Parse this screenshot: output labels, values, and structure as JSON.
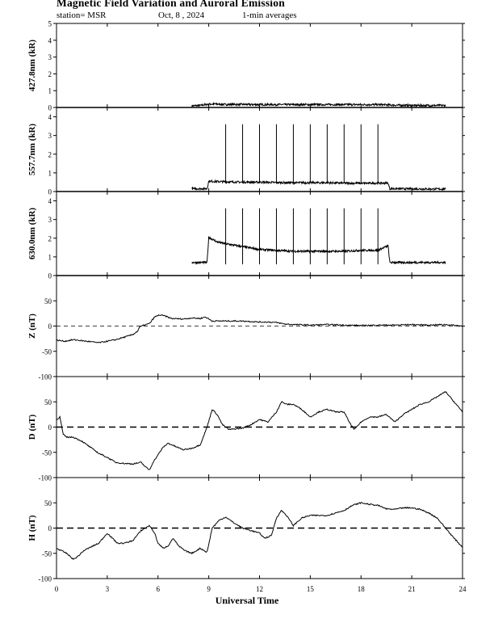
{
  "header": {
    "title": "Magnetic Field Variation and Auroral Emission",
    "station": "station= MSR",
    "date": "Oct, 8  , 2024",
    "averaging": "1-min averages"
  },
  "x_axis": {
    "label": "Universal Time",
    "range": [
      0,
      24
    ],
    "ticks": [
      0,
      3,
      6,
      9,
      12,
      15,
      18,
      21,
      24
    ]
  },
  "chart_data": [
    {
      "type": "line",
      "ylabel": "427.8nm (kR)",
      "ylim": [
        0,
        5
      ],
      "yticks": [
        0,
        1,
        2,
        3,
        4,
        5
      ],
      "series": [
        {
          "x": [
            8.0,
            8.5,
            9.0,
            9.5,
            10,
            11,
            12,
            13,
            14,
            15,
            16,
            17,
            18,
            19,
            20,
            21,
            22,
            23.0
          ],
          "values": [
            0.1,
            0.12,
            0.2,
            0.2,
            0.18,
            0.18,
            0.17,
            0.17,
            0.17,
            0.17,
            0.17,
            0.17,
            0.17,
            0.17,
            0.14,
            0.12,
            0.12,
            0.12
          ]
        }
      ]
    },
    {
      "type": "line",
      "ylabel": "557.7nm (kR)",
      "ylim": [
        0,
        4.5
      ],
      "yticks": [
        0,
        1,
        2,
        3,
        4
      ],
      "series": [
        {
          "x": [
            8.0,
            8.9,
            9.0,
            10,
            11,
            12,
            13,
            14,
            15,
            16,
            17,
            18,
            19,
            19.6,
            19.7,
            23.0
          ],
          "values": [
            0.15,
            0.15,
            0.55,
            0.52,
            0.5,
            0.5,
            0.48,
            0.47,
            0.47,
            0.47,
            0.45,
            0.44,
            0.45,
            0.45,
            0.15,
            0.13
          ]
        }
      ],
      "spikes": {
        "x": [
          10,
          11,
          12,
          13,
          14,
          15,
          16,
          17,
          18,
          19
        ],
        "peak": 3.6
      }
    },
    {
      "type": "line",
      "ylabel": "630.0nm (kR)",
      "ylim": [
        0,
        4.5
      ],
      "yticks": [
        0,
        1,
        2,
        3,
        4
      ],
      "series": [
        {
          "x": [
            8.0,
            8.9,
            9.0,
            9.5,
            10,
            11,
            12,
            13,
            14,
            15,
            16,
            17,
            18,
            19,
            19.6,
            19.7,
            23.0
          ],
          "values": [
            0.7,
            0.7,
            2.05,
            1.8,
            1.7,
            1.55,
            1.4,
            1.35,
            1.3,
            1.3,
            1.3,
            1.3,
            1.35,
            1.35,
            1.6,
            0.7,
            0.7
          ]
        }
      ],
      "spikes": {
        "x": [
          10,
          11,
          12,
          13,
          14,
          15,
          16,
          17,
          18,
          19
        ],
        "peak": 3.6,
        "base": 0.6
      }
    },
    {
      "type": "line",
      "ylabel": "Z (nT)",
      "ylim": [
        -100,
        100
      ],
      "yticks": [
        -100,
        -50,
        0,
        50
      ],
      "reference_line": 0,
      "series": [
        {
          "x": [
            0,
            0.5,
            1,
            1.5,
            2,
            2.5,
            3,
            3.5,
            4,
            4.5,
            4.8,
            4.9,
            5.2,
            5.5,
            5.8,
            6.1,
            6.4,
            6.8,
            7.5,
            8,
            8.5,
            8.8,
            9.2,
            10,
            11,
            12,
            12.5,
            13,
            13.5,
            14,
            15,
            16,
            17,
            18,
            19,
            20,
            21,
            22,
            23,
            24
          ],
          "values": [
            -28,
            -30,
            -27,
            -29,
            -31,
            -33,
            -30,
            -27,
            -22,
            -17,
            -10,
            -2,
            2,
            5,
            18,
            22,
            20,
            15,
            14,
            16,
            15,
            18,
            10,
            10,
            10,
            8,
            8,
            7,
            4,
            3,
            2,
            3,
            2,
            1,
            2,
            2,
            3,
            2,
            3,
            0
          ]
        }
      ]
    },
    {
      "type": "line",
      "ylabel": "D (nT)",
      "ylim": [
        -100,
        100
      ],
      "yticks": [
        -100,
        -50,
        0,
        50
      ],
      "reference_line": 0,
      "series": [
        {
          "x": [
            0,
            0.2,
            0.4,
            0.6,
            1.0,
            1.5,
            2.0,
            2.5,
            3.0,
            3.5,
            4.0,
            4.5,
            5.0,
            5.3,
            5.5,
            5.7,
            6.0,
            6.3,
            6.6,
            7.0,
            7.5,
            8.0,
            8.5,
            8.9,
            9.2,
            9.5,
            9.8,
            10.2,
            11,
            11.5,
            12,
            12.5,
            13,
            13.3,
            13.6,
            14,
            14.5,
            15,
            15.5,
            16,
            16.5,
            17,
            17.3,
            17.6,
            18,
            18.5,
            19,
            19.5,
            20,
            20.5,
            21,
            21.5,
            22,
            22.5,
            23,
            23.5,
            24
          ],
          "values": [
            15,
            20,
            -15,
            -20,
            -20,
            -28,
            -40,
            -52,
            -60,
            -70,
            -72,
            -73,
            -70,
            -80,
            -85,
            -70,
            -55,
            -40,
            -32,
            -38,
            -45,
            -42,
            -35,
            0,
            35,
            25,
            5,
            -5,
            -2,
            5,
            15,
            10,
            30,
            50,
            45,
            45,
            35,
            20,
            30,
            35,
            30,
            30,
            10,
            -5,
            10,
            20,
            20,
            25,
            10,
            25,
            35,
            45,
            50,
            60,
            70,
            50,
            30
          ]
        }
      ]
    },
    {
      "type": "line",
      "ylabel": "H (nT)",
      "ylim": [
        -100,
        100
      ],
      "yticks": [
        -100,
        -50,
        0,
        50
      ],
      "reference_line": 0,
      "series": [
        {
          "x": [
            0,
            0.3,
            0.6,
            1.0,
            1.3,
            1.6,
            2.0,
            2.5,
            3.0,
            3.3,
            3.6,
            4.0,
            4.5,
            5.0,
            5.5,
            5.8,
            6.0,
            6.3,
            6.6,
            6.9,
            7.2,
            7.6,
            8.0,
            8.5,
            8.9,
            9.2,
            9.6,
            10,
            10.5,
            11,
            11.5,
            12,
            12.3,
            12.7,
            13.0,
            13.3,
            13.6,
            14,
            14.5,
            15,
            15.5,
            16,
            16.5,
            17,
            17.5,
            18,
            18.5,
            19,
            19.5,
            20,
            20.5,
            21,
            21.5,
            22,
            22.5,
            23,
            23.5,
            24
          ],
          "values": [
            -40,
            -45,
            -50,
            -62,
            -55,
            -45,
            -38,
            -30,
            -10,
            -20,
            -30,
            -30,
            -25,
            -5,
            5,
            -10,
            -30,
            -40,
            -35,
            -20,
            -35,
            -45,
            -50,
            -40,
            -48,
            0,
            15,
            22,
            10,
            0,
            -5,
            -10,
            -20,
            -15,
            20,
            35,
            25,
            5,
            20,
            25,
            25,
            25,
            30,
            35,
            45,
            50,
            47,
            45,
            38,
            37,
            40,
            40,
            37,
            30,
            20,
            0,
            -20,
            -38
          ]
        }
      ]
    }
  ]
}
